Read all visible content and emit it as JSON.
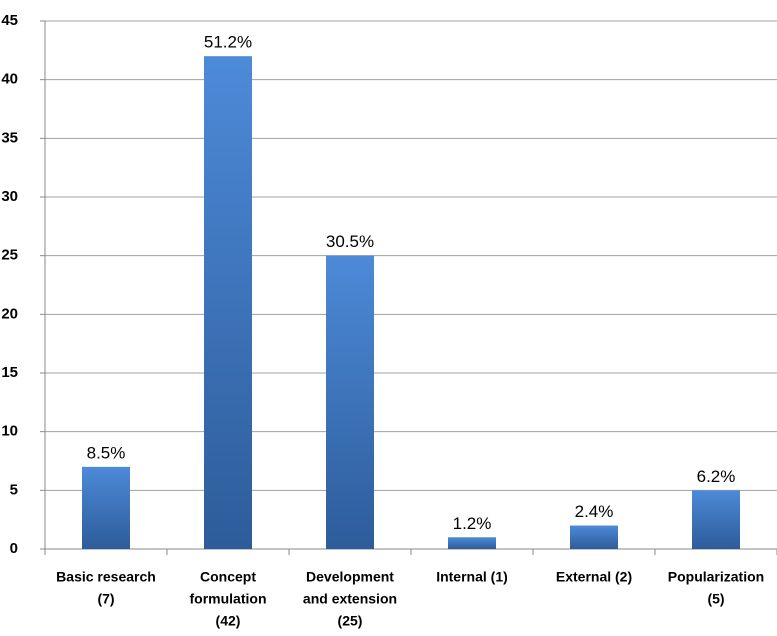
{
  "chart_data": {
    "type": "bar",
    "categories": [
      [
        "Basic research",
        "(7)"
      ],
      [
        "Concept",
        "formulation",
        "(42)"
      ],
      [
        "Development",
        "and extension",
        "(25)"
      ],
      [
        "Internal (1)"
      ],
      [
        "External (2)"
      ],
      [
        "Popularization",
        "(5)"
      ]
    ],
    "values": [
      7,
      42,
      25,
      1,
      2,
      5
    ],
    "annotations": [
      "8.5%",
      "51.2%",
      "30.5%",
      "1.2%",
      "2.4%",
      "6.2%"
    ],
    "color": "#3f78c0",
    "ylim": [
      0,
      45
    ],
    "yticks": [
      0,
      5,
      10,
      15,
      20,
      25,
      30,
      35,
      40,
      45
    ],
    "grid": true
  }
}
